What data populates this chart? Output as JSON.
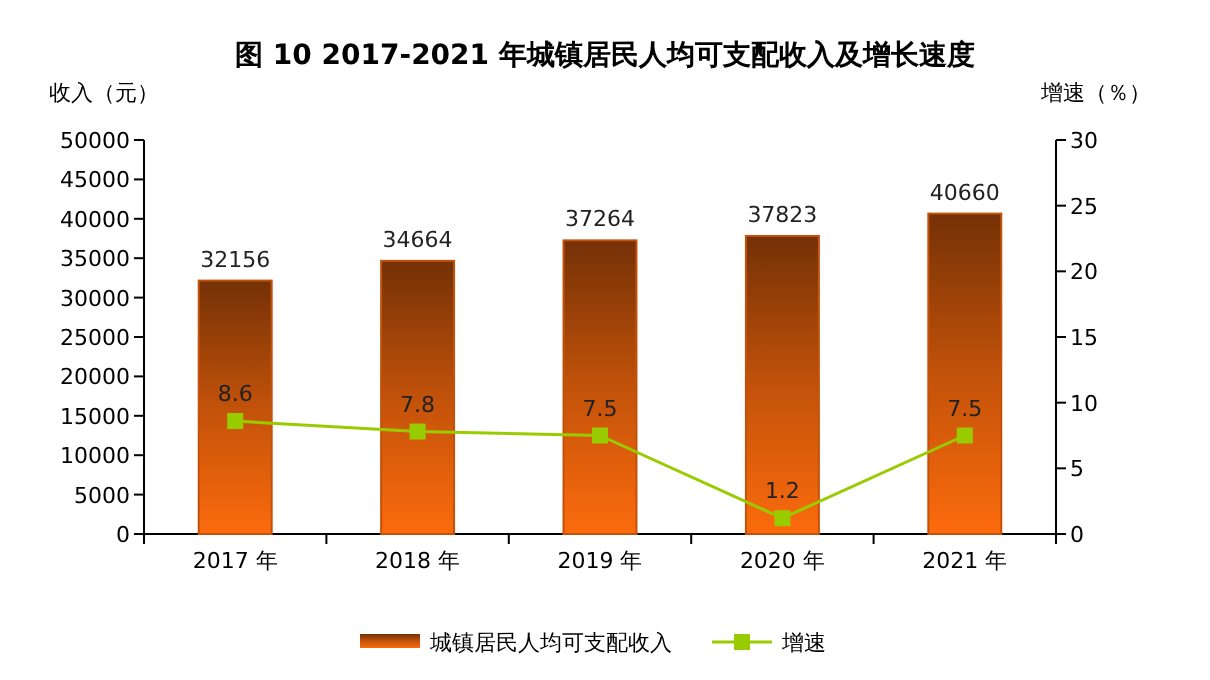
{
  "chart_data": {
    "type": "bar",
    "title": "图 10 2017-2021 年城镇居民人均可支配收入及增长速度",
    "ylabel": "收入（元）",
    "y2label": "增速（％）",
    "categories": [
      "2017 年",
      "2018 年",
      "2019 年",
      "2020 年",
      "2021 年"
    ],
    "series": [
      {
        "name": "城镇居民人均可支配收入",
        "color": "#c2520a",
        "values": [
          32156,
          34664,
          37264,
          37823,
          40660
        ]
      },
      {
        "name": "增速",
        "type": "line",
        "axis": "y2",
        "color": "#99cc00",
        "marker": "square",
        "values": [
          8.6,
          7.8,
          7.5,
          1.2,
          7.5
        ]
      }
    ],
    "ylim": [
      0,
      50000
    ],
    "yticks": [
      0,
      5000,
      10000,
      15000,
      20000,
      25000,
      30000,
      35000,
      40000,
      45000,
      50000
    ],
    "y2lim": [
      0,
      30
    ],
    "y2ticks": [
      0,
      5,
      10,
      15,
      20,
      25,
      30
    ],
    "data_labels": true,
    "grid": false,
    "legend": "bottom"
  }
}
